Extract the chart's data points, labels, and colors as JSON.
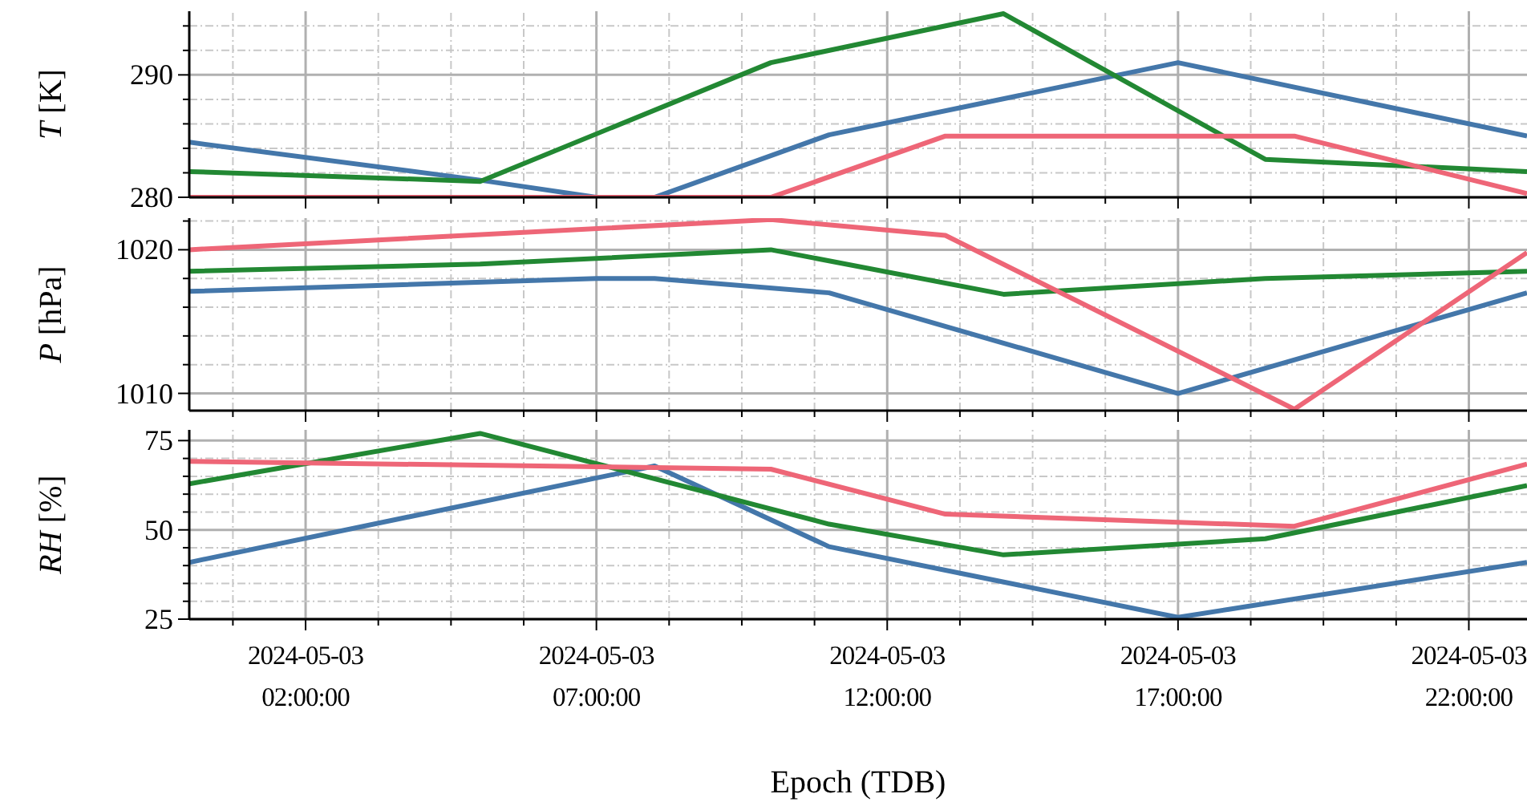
{
  "chart_data": [
    {
      "type": "line",
      "ylabel": "T [K]",
      "xlim": [
        "2024-05-03T00:00",
        "2024-05-03T23:00"
      ],
      "ylim": [
        280,
        295.2
      ],
      "grid": true,
      "tick_labels": "y",
      "line_style": "solid",
      "marker": "none",
      "yticks": [
        280,
        {
          "value": 282,
          "label": null
        },
        {
          "value": 284,
          "label": null
        },
        {
          "value": 286,
          "label": null
        },
        {
          "value": 288,
          "label": null
        },
        290,
        {
          "value": 292,
          "label": null
        },
        {
          "value": 294,
          "label": null
        }
      ],
      "xticks": [
        {
          "value": "2024-05-03T00:45",
          "label": null
        },
        "2024-05-03T02:00",
        {
          "value": "2024-05-03T03:15",
          "label": null
        },
        {
          "value": "2024-05-03T04:30",
          "label": null
        },
        {
          "value": "2024-05-03T05:45",
          "label": null
        },
        "2024-05-03T07:00",
        {
          "value": "2024-05-03T08:15",
          "label": null
        },
        {
          "value": "2024-05-03T09:30",
          "label": null
        },
        {
          "value": "2024-05-03T10:45",
          "label": null
        },
        "2024-05-03T12:00",
        {
          "value": "2024-05-03T13:15",
          "label": null
        },
        {
          "value": "2024-05-03T14:30",
          "label": null
        },
        {
          "value": "2024-05-03T15:45",
          "label": null
        },
        "2024-05-03T17:00",
        {
          "value": "2024-05-03T18:15",
          "label": null
        },
        {
          "value": "2024-05-03T19:30",
          "label": null
        },
        {
          "value": "2024-05-03T20:45",
          "label": null
        },
        "2024-05-03T22:00"
      ],
      "series": [
        {
          "color": "#4477aa",
          "x": [
            "2024-05-03T00:00",
            "2024-05-03T05:00",
            "2024-05-03T07:00",
            "2024-05-03T08:00",
            "2024-05-03T11:00",
            "2024-05-03T17:00",
            "2024-05-03T23:00"
          ],
          "values": [
            284.5,
            281.4,
            280,
            280,
            285.1,
            291,
            285
          ]
        },
        {
          "color": "#228833",
          "x": [
            "2024-05-03T00:00",
            "2024-05-03T05:00",
            "2024-05-03T10:00",
            "2024-05-03T14:00",
            "2024-05-03T18:30",
            "2024-05-03T23:00"
          ],
          "values": [
            282.1,
            281.3,
            291,
            295,
            283.1,
            282.1
          ]
        },
        {
          "color": "#ee6677",
          "x": [
            "2024-05-03T00:00",
            "2024-05-03T10:00",
            "2024-05-03T13:00",
            "2024-05-03T19:00",
            "2024-05-03T23:00"
          ],
          "values": [
            280,
            280,
            285,
            285,
            280.3
          ]
        }
      ]
    },
    {
      "type": "line",
      "ylabel": "P [hPa]",
      "xlim": [
        "2024-05-03T00:00",
        "2024-05-03T23:00"
      ],
      "ylim": [
        1008.8,
        1022.2
      ],
      "grid": true,
      "tick_labels": "y",
      "line_style": "solid",
      "marker": "none",
      "yticks": [
        1010,
        {
          "value": 1012,
          "label": null
        },
        {
          "value": 1014,
          "label": null
        },
        {
          "value": 1016,
          "label": null
        },
        {
          "value": 1018,
          "label": null
        },
        1020,
        {
          "value": 1022,
          "label": null
        }
      ],
      "xticks": [
        {
          "value": "2024-05-03T00:45",
          "label": null
        },
        "2024-05-03T02:00",
        {
          "value": "2024-05-03T03:15",
          "label": null
        },
        {
          "value": "2024-05-03T04:30",
          "label": null
        },
        {
          "value": "2024-05-03T05:45",
          "label": null
        },
        "2024-05-03T07:00",
        {
          "value": "2024-05-03T08:15",
          "label": null
        },
        {
          "value": "2024-05-03T09:30",
          "label": null
        },
        {
          "value": "2024-05-03T10:45",
          "label": null
        },
        "2024-05-03T12:00",
        {
          "value": "2024-05-03T13:15",
          "label": null
        },
        {
          "value": "2024-05-03T14:30",
          "label": null
        },
        {
          "value": "2024-05-03T15:45",
          "label": null
        },
        "2024-05-03T17:00",
        {
          "value": "2024-05-03T18:15",
          "label": null
        },
        {
          "value": "2024-05-03T19:30",
          "label": null
        },
        {
          "value": "2024-05-03T20:45",
          "label": null
        },
        "2024-05-03T22:00"
      ],
      "series": [
        {
          "color": "#4477aa",
          "x": [
            "2024-05-03T00:00",
            "2024-05-03T07:00",
            "2024-05-03T08:00",
            "2024-05-03T11:00",
            "2024-05-03T17:00",
            "2024-05-03T23:00"
          ],
          "values": [
            1017.1,
            1018,
            1018,
            1017,
            1010,
            1017
          ]
        },
        {
          "color": "#228833",
          "x": [
            "2024-05-03T00:00",
            "2024-05-03T05:00",
            "2024-05-03T10:00",
            "2024-05-03T14:00",
            "2024-05-03T18:30",
            "2024-05-03T23:00"
          ],
          "values": [
            1018.5,
            1019,
            1020,
            1016.9,
            1018,
            1018.5
          ]
        },
        {
          "color": "#ee6677",
          "x": [
            "2024-05-03T00:00",
            "2024-05-03T10:00",
            "2024-05-03T13:00",
            "2024-05-03T19:00",
            "2024-05-03T23:00"
          ],
          "values": [
            1020,
            1022.1,
            1021,
            1008.9,
            1019.8
          ]
        }
      ]
    },
    {
      "type": "line",
      "ylabel": "RH [%]",
      "xlabel": "Epoch (TDB)",
      "xlim": [
        "2024-05-03T00:00",
        "2024-05-03T23:00"
      ],
      "ylim": [
        25,
        78
      ],
      "grid": true,
      "line_style": "solid",
      "marker": "none",
      "yticks": [
        25,
        {
          "value": 30,
          "label": null
        },
        {
          "value": 35,
          "label": null
        },
        {
          "value": 40,
          "label": null
        },
        {
          "value": 45,
          "label": null
        },
        50,
        {
          "value": 55,
          "label": null
        },
        {
          "value": 60,
          "label": null
        },
        {
          "value": 65,
          "label": null
        },
        {
          "value": 70,
          "label": null
        },
        75
      ],
      "xticks": [
        {
          "value": "2024-05-03T00:45",
          "label": null
        },
        {
          "value": "2024-05-03T02:00",
          "label": "2024-05-03 02:00:00"
        },
        {
          "value": "2024-05-03T03:15",
          "label": null
        },
        {
          "value": "2024-05-03T04:30",
          "label": null
        },
        {
          "value": "2024-05-03T05:45",
          "label": null
        },
        {
          "value": "2024-05-03T07:00",
          "label": "2024-05-03 07:00:00"
        },
        {
          "value": "2024-05-03T08:15",
          "label": null
        },
        {
          "value": "2024-05-03T09:30",
          "label": null
        },
        {
          "value": "2024-05-03T10:45",
          "label": null
        },
        {
          "value": "2024-05-03T12:00",
          "label": "2024-05-03 12:00:00"
        },
        {
          "value": "2024-05-03T13:15",
          "label": null
        },
        {
          "value": "2024-05-03T14:30",
          "label": null
        },
        {
          "value": "2024-05-03T15:45",
          "label": null
        },
        {
          "value": "2024-05-03T17:00",
          "label": "2024-05-03 17:00:00"
        },
        {
          "value": "2024-05-03T18:15",
          "label": null
        },
        {
          "value": "2024-05-03T19:30",
          "label": null
        },
        {
          "value": "2024-05-03T20:45",
          "label": null
        },
        {
          "value": "2024-05-03T22:00",
          "label": "2024-05-03 22:00:00"
        }
      ],
      "series": [
        {
          "color": "#4477aa",
          "x": [
            "2024-05-03T00:00",
            "2024-05-03T08:00",
            "2024-05-03T11:00",
            "2024-05-03T17:00",
            "2024-05-03T23:00"
          ],
          "values": [
            40.9,
            67.9,
            45.3,
            25.5,
            40.9
          ]
        },
        {
          "color": "#228833",
          "x": [
            "2024-05-03T00:00",
            "2024-05-03T05:00",
            "2024-05-03T11:00",
            "2024-05-03T14:00",
            "2024-05-03T18:30",
            "2024-05-03T23:00"
          ],
          "values": [
            62.9,
            77,
            51.6,
            43,
            47.5,
            62.4
          ]
        },
        {
          "color": "#ee6677",
          "x": [
            "2024-05-03T00:00",
            "2024-05-03T10:00",
            "2024-05-03T13:00",
            "2024-05-03T19:00",
            "2024-05-03T23:00"
          ],
          "values": [
            69.2,
            67,
            54.4,
            51,
            68.4
          ]
        }
      ]
    }
  ]
}
